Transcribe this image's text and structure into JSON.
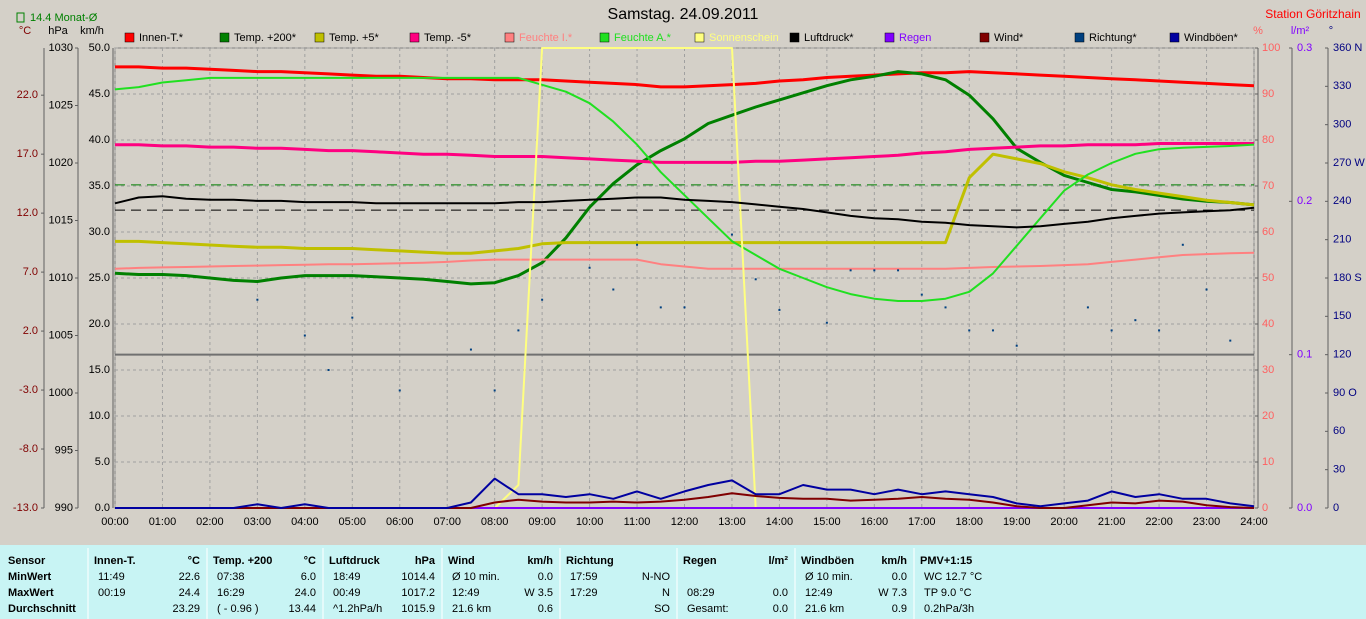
{
  "chart_data": {
    "type": "line",
    "title": "Samstag. 24.09.2011",
    "station": "Station Göritzhain",
    "reference_lines": [
      {
        "label": "14.4 Monat-Ø",
        "value": 14.4,
        "axis": 0,
        "color": "#008000"
      },
      {
        "value": 1015.9,
        "axis": 1,
        "color": "#000000"
      }
    ],
    "xlim": [
      0,
      24
    ],
    "xticks": [
      {
        "value": 0,
        "label": "00:00"
      },
      {
        "value": 1,
        "label": "01:00"
      },
      {
        "value": 2,
        "label": "02:00"
      },
      {
        "value": 3,
        "label": "03:00"
      },
      {
        "value": 4,
        "label": "04:00"
      },
      {
        "value": 5,
        "label": "05:00"
      },
      {
        "value": 6,
        "label": "06:00"
      },
      {
        "value": 7,
        "label": "07:00"
      },
      {
        "value": 8,
        "label": "08:00"
      },
      {
        "value": 9,
        "label": "09:00"
      },
      {
        "value": 10,
        "label": "10:00"
      },
      {
        "value": 11,
        "label": "11:00"
      },
      {
        "value": 12,
        "label": "12:00"
      },
      {
        "value": 13,
        "label": "13:00"
      },
      {
        "value": 14,
        "label": "14:00"
      },
      {
        "value": 15,
        "label": "15:00"
      },
      {
        "value": 16,
        "label": "16:00"
      },
      {
        "value": 17,
        "label": "17:00"
      },
      {
        "value": 18,
        "label": "18:00"
      },
      {
        "value": 19,
        "label": "19:00"
      },
      {
        "value": 20,
        "label": "20:00"
      },
      {
        "value": 21,
        "label": "21:00"
      },
      {
        "value": 22,
        "label": "22:00"
      },
      {
        "value": 23,
        "label": "23:00"
      },
      {
        "value": 24,
        "label": "24:00"
      }
    ],
    "axes": [
      {
        "unit": "°C",
        "color": "#800000",
        "ylim": [
          -13,
          26
        ],
        "yticks": [
          {
            "value": -13,
            "label": "-13.0"
          },
          {
            "value": -8,
            "label": "-8.0"
          },
          {
            "value": -3,
            "label": "-3.0"
          },
          {
            "value": 2,
            "label": "2.0"
          },
          {
            "value": 7,
            "label": "7.0"
          },
          {
            "value": 12,
            "label": "12.0"
          },
          {
            "value": 17,
            "label": "17.0"
          },
          {
            "value": 22,
            "label": "22.0"
          }
        ]
      },
      {
        "unit": "hPa",
        "color": "#000000",
        "ylim": [
          990,
          1030
        ],
        "yticks": [
          990,
          995,
          1000,
          1005,
          1010,
          1015,
          1020,
          1025,
          1030
        ]
      },
      {
        "unit": "km/h",
        "color": "#000000",
        "grid": true,
        "ylim": [
          0,
          50
        ],
        "yticks": [
          {
            "value": 0,
            "label": "0.0"
          },
          {
            "value": 5,
            "label": "5.0"
          },
          {
            "value": 10,
            "label": "10.0"
          },
          {
            "value": 15,
            "label": "15.0"
          },
          {
            "value": 20,
            "label": "20.0"
          },
          {
            "value": 25,
            "label": "25.0"
          },
          {
            "value": 30,
            "label": "30.0"
          },
          {
            "value": 35,
            "label": "35.0"
          },
          {
            "value": 40,
            "label": "40.0"
          },
          {
            "value": 45,
            "label": "45.0"
          },
          {
            "value": 50,
            "label": "50.0"
          }
        ]
      },
      {
        "unit": "%",
        "color": "#ff6060",
        "ylim": [
          0,
          100
        ],
        "yticks": [
          0,
          10,
          20,
          30,
          40,
          50,
          60,
          70,
          80,
          90,
          100
        ]
      },
      {
        "unit": "l/m²",
        "color": "#8000ff",
        "ylim": [
          0,
          0.3
        ],
        "yticks": [
          {
            "value": 0,
            "label": "0.0"
          },
          0.1,
          0.2,
          0.3
        ]
      },
      {
        "unit": "°",
        "color": "#000080",
        "ylim": [
          0,
          360
        ],
        "yticks": [
          0,
          30,
          60,
          {
            "value": 90,
            "label": "90 O"
          },
          120,
          150,
          {
            "value": 180,
            "label": "180 S"
          },
          210,
          240,
          {
            "value": 270,
            "label": "270 W"
          },
          300,
          330,
          {
            "value": 360,
            "label": "360 N"
          }
        ]
      }
    ],
    "x": [
      0,
      0.5,
      1,
      1.5,
      2,
      2.5,
      3,
      3.5,
      4,
      4.5,
      5,
      5.5,
      6,
      6.5,
      7,
      7.5,
      8,
      8.5,
      9,
      9.5,
      10,
      10.5,
      11,
      11.5,
      12,
      12.5,
      13,
      13.5,
      14,
      14.5,
      15,
      15.5,
      16,
      16.5,
      17,
      17.5,
      18,
      18.5,
      19,
      19.5,
      20,
      20.5,
      21,
      21.5,
      22,
      22.5,
      23,
      23.5,
      24
    ],
    "series": [
      {
        "name": "Innen-T.*",
        "color": "#ff0000",
        "axis": 0,
        "values": [
          24.4,
          24.4,
          24.3,
          24.3,
          24.2,
          24.1,
          24.0,
          24.0,
          23.9,
          23.8,
          23.7,
          23.6,
          23.6,
          23.5,
          23.4,
          23.4,
          23.3,
          23.3,
          23.3,
          23.2,
          23.1,
          23.0,
          22.9,
          22.7,
          22.7,
          22.8,
          22.9,
          23.0,
          23.2,
          23.3,
          23.5,
          23.6,
          23.7,
          23.8,
          23.9,
          23.9,
          24.0,
          23.9,
          23.8,
          23.7,
          23.6,
          23.5,
          23.4,
          23.3,
          23.2,
          23.1,
          23.0,
          22.9,
          22.8
        ]
      },
      {
        "name": "Temp. +200*",
        "color": "#008000",
        "axis": 0,
        "values": [
          6.9,
          6.8,
          6.8,
          6.7,
          6.5,
          6.3,
          6.2,
          6.5,
          6.7,
          6.7,
          6.7,
          6.6,
          6.5,
          6.4,
          6.2,
          6.0,
          6.1,
          6.7,
          7.8,
          9.9,
          12.5,
          14.5,
          16.1,
          17.3,
          18.3,
          19.6,
          20.3,
          21.0,
          21.6,
          22.2,
          22.8,
          23.3,
          23.6,
          24.0,
          23.8,
          23.3,
          22.0,
          20.0,
          17.5,
          16.3,
          15.2,
          14.6,
          14.0,
          13.8,
          13.5,
          13.2,
          13.0,
          12.9,
          12.7
        ]
      },
      {
        "name": "Temp. +5*",
        "color": "#c0c000",
        "axis": 0,
        "values": [
          9.6,
          9.6,
          9.5,
          9.4,
          9.3,
          9.2,
          9.1,
          9.1,
          9.0,
          9.0,
          9.0,
          8.9,
          8.8,
          8.7,
          8.6,
          8.6,
          8.8,
          9.0,
          9.4,
          9.5,
          9.5,
          9.5,
          9.5,
          9.5,
          9.5,
          9.5,
          9.5,
          9.5,
          9.5,
          9.5,
          9.5,
          9.5,
          9.5,
          9.5,
          9.5,
          9.5,
          15.0,
          17.0,
          16.6,
          16.2,
          15.5,
          15.0,
          14.4,
          14.0,
          13.7,
          13.4,
          13.1,
          12.9,
          12.7
        ]
      },
      {
        "name": "Temp. -5*",
        "color": "#ff0080",
        "axis": 0,
        "values": [
          17.8,
          17.8,
          17.7,
          17.7,
          17.6,
          17.6,
          17.5,
          17.5,
          17.4,
          17.3,
          17.3,
          17.2,
          17.1,
          17.0,
          17.0,
          16.9,
          16.8,
          16.8,
          16.8,
          16.7,
          16.6,
          16.5,
          16.4,
          16.3,
          16.3,
          16.3,
          16.3,
          16.4,
          16.4,
          16.5,
          16.6,
          16.7,
          16.8,
          16.9,
          17.1,
          17.2,
          17.4,
          17.5,
          17.6,
          17.7,
          17.7,
          17.8,
          17.8,
          17.8,
          17.9,
          17.9,
          17.9,
          17.9,
          17.9
        ]
      },
      {
        "name": "Feuchte I.*",
        "color": "#ff8080",
        "legend_text_color": "#ff8080",
        "axis": 3,
        "values": [
          52,
          52.2,
          52.3,
          52.4,
          52.5,
          52.6,
          52.7,
          52.8,
          52.9,
          53,
          53,
          53.1,
          53.2,
          53.3,
          53.5,
          53.8,
          54,
          54,
          54,
          54,
          54,
          54,
          54,
          53,
          52.5,
          52,
          52,
          52,
          52,
          52,
          52,
          52,
          52,
          52,
          52,
          52,
          52.2,
          52.4,
          52.5,
          52.6,
          52.8,
          53,
          53.5,
          54,
          54.5,
          55,
          55.2,
          55.4,
          55.5
        ]
      },
      {
        "name": "Feuchte A.*",
        "color": "#20e020",
        "legend_text_color": "#20e020",
        "axis": 3,
        "values": [
          91,
          91.5,
          92.5,
          93,
          93.5,
          93.5,
          93.5,
          93.5,
          93.5,
          93.5,
          93.5,
          93.5,
          93.5,
          93.5,
          93.5,
          93.5,
          93.5,
          93.5,
          92,
          90.5,
          88,
          84,
          79,
          73,
          68,
          63,
          58,
          55,
          52,
          50,
          48,
          46.5,
          45.5,
          45,
          45,
          45.5,
          47,
          51,
          57,
          63,
          69,
          72.5,
          75,
          77,
          78,
          78.3,
          78.5,
          78.7,
          79
        ]
      },
      {
        "name": "Sonnenschein",
        "color": "#ffff80",
        "legend_text_color": "#ffff80",
        "axis": 3,
        "values": [
          0,
          0,
          0,
          0,
          0,
          0,
          0,
          0,
          0,
          0,
          0,
          0,
          0,
          0,
          0,
          0,
          0,
          5,
          100,
          100,
          100,
          100,
          100,
          100,
          100,
          100,
          100,
          0,
          0,
          0,
          0,
          0,
          0,
          0,
          0,
          0,
          0,
          0,
          0,
          0,
          0,
          0,
          0,
          0,
          0,
          0,
          0,
          0,
          0
        ]
      },
      {
        "name": "Luftdruck*",
        "color": "#000000",
        "axis": 1,
        "values": [
          1016.5,
          1017.0,
          1017.1,
          1016.9,
          1016.8,
          1016.8,
          1016.7,
          1016.7,
          1016.6,
          1016.6,
          1016.6,
          1016.5,
          1016.5,
          1016.5,
          1016.5,
          1016.5,
          1016.5,
          1016.6,
          1016.6,
          1016.7,
          1016.8,
          1016.9,
          1017.0,
          1017.0,
          1016.8,
          1016.7,
          1016.6,
          1016.4,
          1016.2,
          1016.0,
          1015.7,
          1015.4,
          1015.2,
          1015.1,
          1014.9,
          1014.8,
          1014.6,
          1014.5,
          1014.4,
          1014.5,
          1014.7,
          1014.9,
          1015.2,
          1015.4,
          1015.6,
          1015.7,
          1015.8,
          1015.9,
          1016.1
        ]
      },
      {
        "name": "Regen",
        "color": "#8000ff",
        "legend_text_color": "#8000ff",
        "axis": 4,
        "values": [
          0,
          0,
          0,
          0,
          0,
          0,
          0,
          0,
          0,
          0,
          0,
          0,
          0,
          0,
          0,
          0,
          0,
          0,
          0,
          0,
          0,
          0,
          0,
          0,
          0,
          0,
          0,
          0,
          0,
          0,
          0,
          0,
          0,
          0,
          0,
          0,
          0,
          0,
          0,
          0,
          0,
          0,
          0,
          0,
          0,
          0,
          0,
          0,
          0
        ]
      },
      {
        "name": "Wind*",
        "color": "#800000",
        "axis": 2,
        "values": [
          0,
          0,
          0,
          0,
          0,
          0,
          0,
          0,
          0,
          0,
          0,
          0,
          0,
          0,
          0,
          0,
          0.6,
          0.9,
          0.7,
          0.6,
          0.6,
          0.7,
          0.6,
          0.7,
          0.9,
          1.2,
          1.6,
          1.3,
          1.1,
          1.0,
          1.0,
          0.8,
          0.9,
          1.0,
          1.2,
          1.0,
          0.9,
          0.6,
          0.2,
          0,
          0,
          0.3,
          0.6,
          0.5,
          0.8,
          0.7,
          0.3,
          0.1,
          0
        ]
      },
      {
        "name": "Richtung*",
        "color": "#004080",
        "axis": 5,
        "style": "dots",
        "values": [
          null,
          null,
          null,
          null,
          null,
          null,
          163,
          null,
          135,
          108,
          149,
          null,
          92,
          null,
          null,
          124,
          92,
          139,
          163,
          null,
          188,
          171,
          206,
          157,
          157,
          null,
          214,
          179,
          155,
          null,
          145,
          186,
          186,
          186,
          167,
          157,
          139,
          139,
          127,
          null,
          null,
          157,
          139,
          147,
          139,
          206,
          171,
          131,
          null
        ]
      },
      {
        "name": "Windböen*",
        "color": "#0000a0",
        "axis": 2,
        "values": [
          0,
          0,
          0,
          0,
          0,
          0,
          0.4,
          0,
          0.4,
          0,
          0,
          0,
          0,
          0,
          0,
          0.6,
          3.2,
          1.5,
          1.5,
          1.2,
          1.5,
          1.0,
          1.8,
          1.0,
          1.8,
          2.5,
          3.0,
          1.5,
          1.5,
          2.5,
          2.0,
          2.0,
          1.5,
          2.0,
          1.5,
          1.8,
          1.5,
          1.2,
          0.5,
          0.2,
          0.5,
          0.8,
          1.8,
          1.2,
          1.5,
          1.0,
          1.0,
          0.5,
          0.2
        ]
      }
    ]
  },
  "stats": {
    "row_labels": [
      "Sensor",
      "MinWert",
      "MaxWert",
      "Durchschnitt"
    ],
    "columns": [
      {
        "name": "Innen-T.",
        "unit": "°C",
        "rows": [
          {
            "left": "11:49",
            "right": "22.6"
          },
          {
            "left": "00:19",
            "right": "24.4"
          },
          {
            "right": "23.29"
          }
        ]
      },
      {
        "name": "Temp. +200",
        "unit": "°C",
        "rows": [
          {
            "left": "07:38",
            "right": "6.0"
          },
          {
            "left": "16:29",
            "right": "24.0"
          },
          {
            "left": "( - 0.96 )",
            "right": "13.44"
          }
        ]
      },
      {
        "name": "Luftdruck",
        "unit": "hPa",
        "rows": [
          {
            "left": "18:49",
            "right": "1014.4"
          },
          {
            "left": "00:49",
            "right": "1017.2"
          },
          {
            "left": "^1.2hPa/h",
            "right": "1015.9"
          }
        ]
      },
      {
        "name": "Wind",
        "unit": "km/h",
        "rows": [
          {
            "left": "Ø 10 min.",
            "right": "0.0"
          },
          {
            "left": "12:49",
            "right": "W 3.5"
          },
          {
            "left": "21.6 km",
            "right": "0.6"
          }
        ]
      },
      {
        "name": "Richtung",
        "rows": [
          {
            "left": "17:59",
            "right": "N-NO"
          },
          {
            "left": "17:29",
            "right": "N"
          },
          {
            "right": "SO"
          }
        ]
      },
      {
        "name": "Regen",
        "unit": "l/m²",
        "rows": [
          {},
          {
            "left": "08:29",
            "right": "0.0"
          },
          {
            "left": "Gesamt:",
            "right": "0.0"
          }
        ]
      },
      {
        "name": "Windböen",
        "unit": "km/h",
        "rows": [
          {
            "left": "Ø 10 min.",
            "right": "0.0"
          },
          {
            "left": "12:49",
            "right": "W 7.3"
          },
          {
            "left": "21.6 km",
            "right": "0.9"
          }
        ]
      },
      {
        "name": "PMV+1:15",
        "rows": [
          {
            "left": "WC 12.7 °C"
          },
          {
            "left": "TP 9.0 °C"
          },
          {
            "left": "0.2hPa/3h"
          }
        ]
      }
    ]
  }
}
